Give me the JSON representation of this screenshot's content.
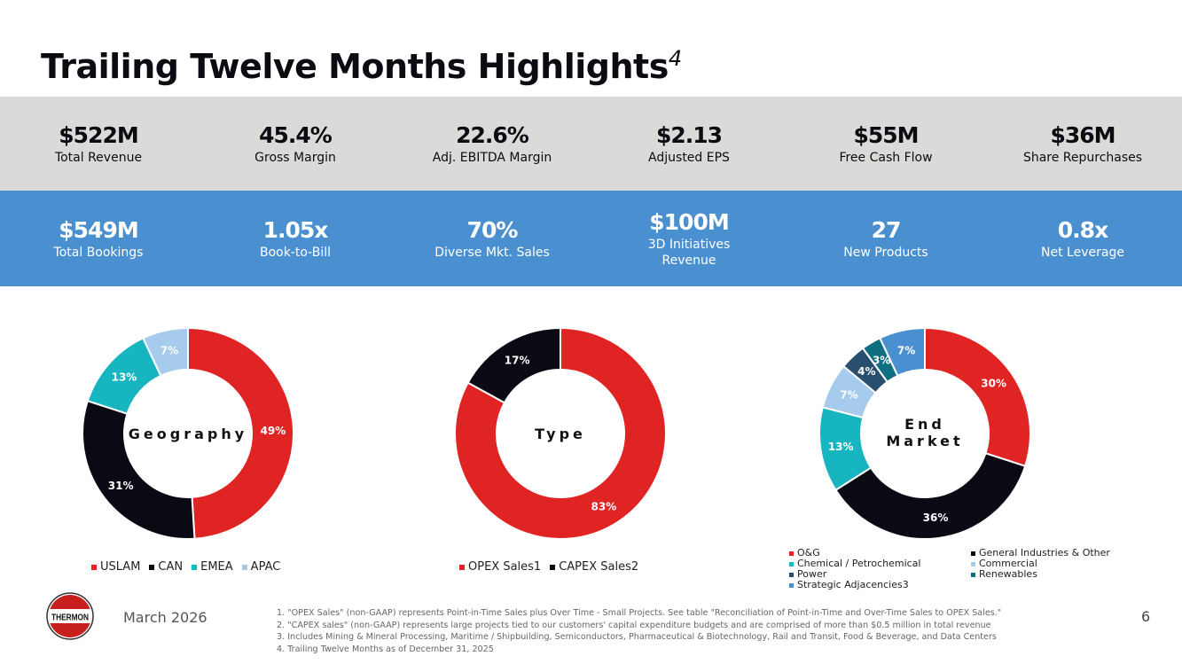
{
  "title": "Trailing Twelve Months Highlights",
  "title_superscript": "4",
  "row1": [
    {
      "value": "$522M",
      "label": "Total Revenue"
    },
    {
      "value": "45.4%",
      "label": "Gross Margin"
    },
    {
      "value": "22.6%",
      "label": "Adj. EBITDA Margin"
    },
    {
      "value": "$2.13",
      "label": "Adjusted EPS"
    },
    {
      "value": "$55M",
      "label": "Free Cash Flow"
    },
    {
      "value": "$36M",
      "label": "Share Repurchases"
    }
  ],
  "row2": [
    {
      "value": "$549M",
      "label": "Total Bookings"
    },
    {
      "value": "1.05x",
      "label": "Book-to-Bill"
    },
    {
      "value": "70%",
      "label": "Diverse Mkt. Sales"
    },
    {
      "value": "$100M",
      "label": "3D Initiatives Revenue"
    },
    {
      "value": "27",
      "label": "New Products"
    },
    {
      "value": "0.8x",
      "label": "Net Leverage"
    }
  ],
  "chart_data": [
    {
      "type": "pie",
      "title": "Geography",
      "categories": [
        "USLAM",
        "CAN",
        "EMEA",
        "APAC"
      ],
      "values": [
        49,
        31,
        13,
        7
      ],
      "labels": [
        "49%",
        "31%",
        "13%",
        "7%"
      ],
      "colors": [
        "#e02424",
        "#0a0a14",
        "#17b5c0",
        "#a6cbed"
      ],
      "legend": "bottom"
    },
    {
      "type": "pie",
      "title": "Type",
      "categories": [
        "OPEX Sales1",
        "CAPEX Sales2"
      ],
      "values": [
        83,
        17
      ],
      "labels": [
        "83%",
        "17%"
      ],
      "colors": [
        "#e02424",
        "#0a0a14"
      ],
      "legend": "bottom"
    },
    {
      "type": "pie",
      "title": "End Market",
      "categories": [
        "O&G",
        "General Industries & Other",
        "Chemical / Petrochemical",
        "Commercial",
        "Power",
        "Renewables",
        "Strategic Adjacencies3"
      ],
      "values": [
        30,
        36,
        13,
        7,
        4,
        3,
        7
      ],
      "labels": [
        "30%",
        "36%",
        "13%",
        "7%",
        "4%",
        "3%",
        "7%"
      ],
      "colors": [
        "#e02424",
        "#0a0a14",
        "#17b5c0",
        "#a6cbed",
        "#28506e",
        "#0f6f80",
        "#4a90d0"
      ],
      "legend": "bottom"
    }
  ],
  "end_market_title": [
    "End",
    "Market"
  ],
  "footer": {
    "date": "March 2026",
    "page": "6",
    "logo_text": "THERMON",
    "notes": [
      "1.   \"OPEX Sales\" (non-GAAP) represents Point-in-Time Sales plus Over Time - Small Projects. See table \"Reconciliation of Point-in-Time and Over-Time Sales to OPEX Sales.\"",
      "2.   \"CAPEX sales\" (non-GAAP) represents large projects tied to our customers' capital expenditure budgets and are comprised of more than $0.5 million in total revenue",
      "3.     Includes Mining & Mineral Processing, Maritime / Shipbuilding, Semiconductors, Pharmaceutical & Biotechnology, Rail and Transit, Food & Beverage, and Data Centers",
      "4.     Trailing Twelve Months as of December 31, 2025"
    ]
  }
}
